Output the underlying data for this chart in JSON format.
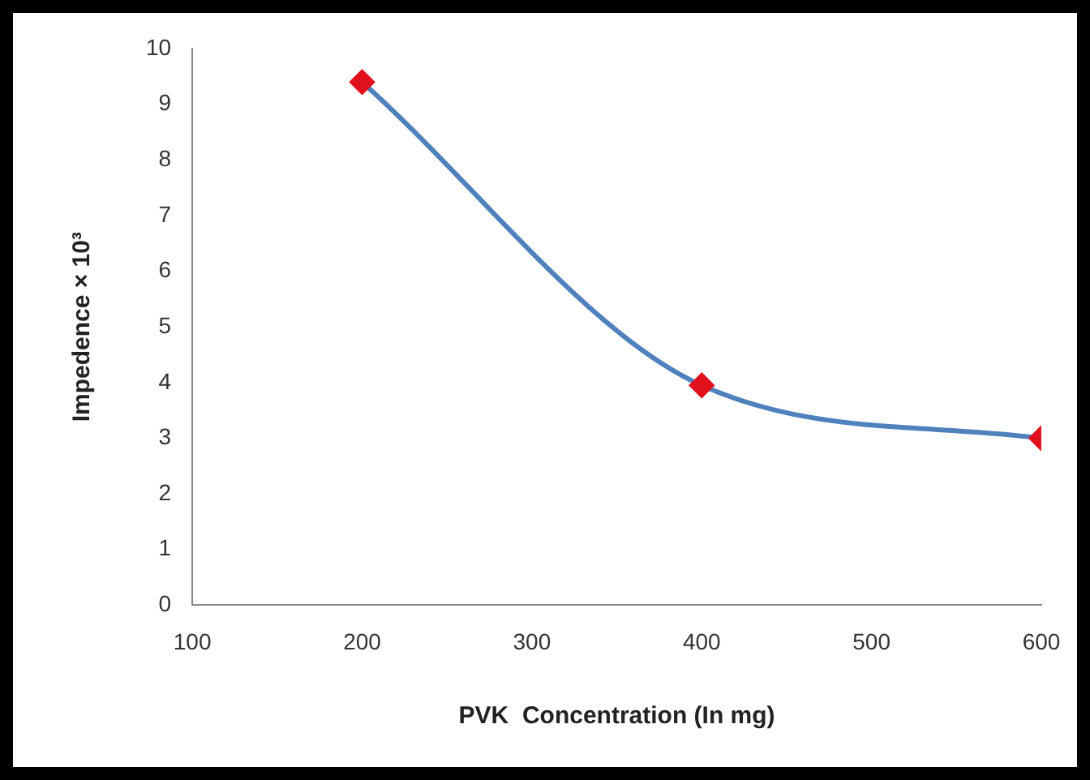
{
  "chart_data": {
    "type": "line",
    "xlabel": "PVK  Concentration (In mg)",
    "ylabel": "Impedence × 10³",
    "x": [
      200,
      400,
      600
    ],
    "series": [
      {
        "color": "#4f81bd",
        "colors": [
          "#e0101c",
          "#e0101c",
          "#e0101c"
        ],
        "values": [
          9.4,
          3.95,
          3.0
        ]
      }
    ],
    "xlim": [
      100,
      600
    ],
    "xticks": [
      100,
      200,
      300,
      400,
      500,
      600
    ],
    "ylim": [
      0,
      10
    ],
    "yticks": [
      0,
      1,
      2,
      3,
      4,
      5,
      6,
      7,
      8,
      9,
      10
    ],
    "grid": false,
    "legend": false,
    "marker": "diamond",
    "line_style": "solid"
  }
}
